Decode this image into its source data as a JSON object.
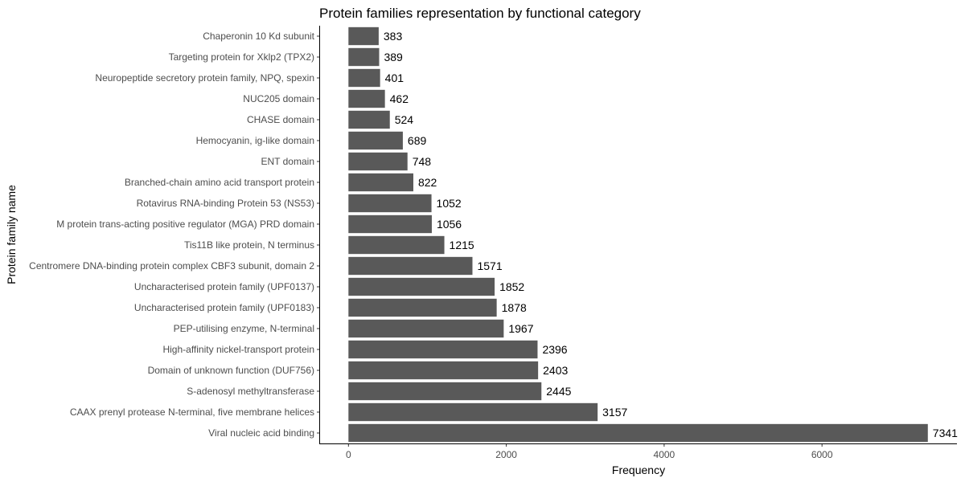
{
  "chart_data": {
    "type": "bar",
    "orientation": "horizontal",
    "title": "Protein families representation by functional category",
    "xlabel": "Frequency",
    "ylabel": "Protein family name",
    "categories": [
      "Chaperonin 10 Kd subunit",
      "Targeting protein for Xklp2 (TPX2)",
      "Neuropeptide secretory protein family, NPQ, spexin",
      "NUC205 domain",
      "CHASE domain",
      "Hemocyanin, ig-like domain",
      "ENT domain",
      "Branched-chain amino acid transport protein",
      "Rotavirus RNA-binding Protein 53 (NS53)",
      "M protein trans-acting positive regulator (MGA) PRD domain",
      "Tis11B like protein, N terminus",
      "Centromere DNA-binding protein complex CBF3 subunit, domain 2",
      "Uncharacterised protein family (UPF0137)",
      "Uncharacterised protein family (UPF0183)",
      "PEP-utilising enzyme, N-terminal",
      "High-affinity nickel-transport protein",
      "Domain of unknown function (DUF756)",
      "S-adenosyl methyltransferase",
      "CAAX prenyl protease N-terminal, five membrane helices",
      "Viral nucleic acid binding"
    ],
    "values": [
      383,
      389,
      401,
      462,
      524,
      689,
      748,
      822,
      1052,
      1056,
      1215,
      1571,
      1852,
      1878,
      1967,
      2396,
      2403,
      2445,
      3157,
      7341
    ],
    "value_labels": [
      "383",
      "389",
      "401",
      "462",
      "524",
      "689",
      "748",
      "822",
      "1052",
      "1056",
      "1215",
      "1571",
      "1852",
      "1878",
      "1967",
      "2396",
      "2403",
      "2445",
      "3157",
      "7341"
    ],
    "xticks": [
      0,
      2000,
      4000,
      6000
    ],
    "xtick_labels": [
      "0",
      "2000",
      "4000",
      "6000"
    ],
    "xlim": [
      -370,
      7710
    ],
    "grid": false,
    "bar_color": "#595959"
  }
}
